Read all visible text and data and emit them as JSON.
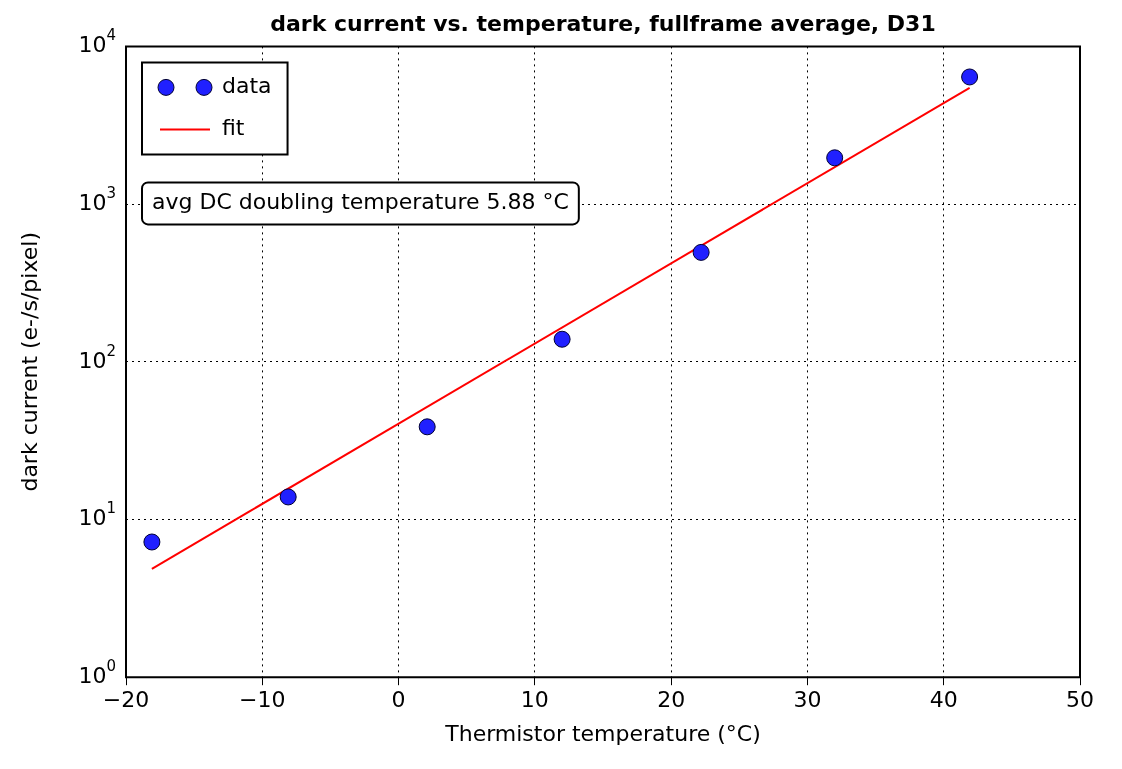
{
  "chart_data": {
    "type": "scatter",
    "title": "dark current vs. temperature, fullframe average, D31",
    "xlabel": "Thermistor temperature (°C)",
    "ylabel": "dark current (e-/s/pixel)",
    "series": [
      {
        "name": "data",
        "type": "scatter",
        "marker": "circle",
        "color": "#2020ff",
        "x": [
          -18.1,
          -8.1,
          2.1,
          12.0,
          22.2,
          32.0,
          41.9
        ],
        "values": [
          7.2,
          13.9,
          38.7,
          139,
          494,
          1966,
          6400
        ]
      },
      {
        "name": "fit",
        "type": "line",
        "marker": "none",
        "line_style": "solid",
        "color": "#ff0000",
        "x": [
          -18.1,
          41.9
        ],
        "values": [
          4.87,
          5464
        ]
      }
    ],
    "xlim": [
      -20,
      50
    ],
    "xticks": [
      {
        "value": -20,
        "label": "−20"
      },
      {
        "value": -10,
        "label": "−10"
      },
      0,
      10,
      20,
      30,
      40,
      50
    ],
    "ylim": [
      1,
      10000
    ],
    "yticks": [
      {
        "value": 1,
        "label": "10$^{0}$"
      },
      {
        "value": 10,
        "label": "10$^{1}$"
      },
      {
        "value": 100,
        "label": "10$^{2}$"
      },
      {
        "value": 1000,
        "label": "10$^{3}$"
      },
      {
        "value": 10000,
        "label": "10$^{4}$"
      }
    ],
    "log": "y",
    "grid": true,
    "legend": "top left",
    "annotations": [
      "avg DC doubling temperature 5.88 °C"
    ]
  }
}
